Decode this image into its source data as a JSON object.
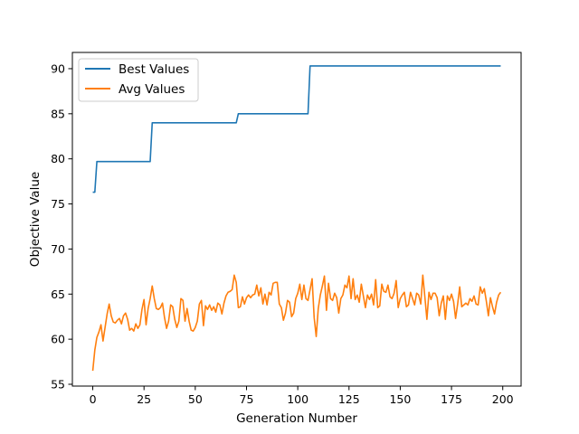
{
  "chart_data": {
    "type": "line",
    "title": "",
    "xlabel": "Generation Number",
    "ylabel": "Objective Value",
    "xlim": [
      -9.95,
      208.95
    ],
    "ylim": [
      54.8,
      91.8
    ],
    "xticks": [
      0,
      25,
      50,
      75,
      100,
      125,
      150,
      175,
      200
    ],
    "yticks": [
      55,
      60,
      65,
      70,
      75,
      80,
      85,
      90
    ],
    "grid": false,
    "legend_position": "top-left",
    "series": [
      {
        "name": "Best Values",
        "color": "#1f77b4",
        "points": [
          [
            0,
            76.3
          ],
          [
            1,
            76.3
          ],
          [
            2,
            79.7
          ],
          [
            28,
            79.7
          ],
          [
            29,
            84.0
          ],
          [
            70,
            84.0
          ],
          [
            71,
            85.0
          ],
          [
            105,
            85.0
          ],
          [
            106,
            90.3
          ],
          [
            199,
            90.3
          ]
        ]
      },
      {
        "name": "Avg Values",
        "color": "#ff7f0e",
        "points": [
          [
            0,
            56.5
          ],
          [
            1,
            58.8
          ],
          [
            2,
            60.2
          ],
          [
            3,
            60.8
          ],
          [
            4,
            61.6
          ],
          [
            5,
            59.8
          ],
          [
            6,
            61.3
          ],
          [
            7,
            62.8
          ],
          [
            8,
            63.9
          ],
          [
            9,
            62.6
          ],
          [
            10,
            61.9
          ],
          [
            11,
            61.8
          ],
          [
            12,
            62.1
          ],
          [
            13,
            62.3
          ],
          [
            14,
            61.7
          ],
          [
            15,
            62.6
          ],
          [
            16,
            62.9
          ],
          [
            17,
            62.2
          ],
          [
            18,
            61.0
          ],
          [
            19,
            61.2
          ],
          [
            20,
            60.9
          ],
          [
            21,
            61.7
          ],
          [
            22,
            61.2
          ],
          [
            23,
            61.6
          ],
          [
            24,
            63.3
          ],
          [
            25,
            64.4
          ],
          [
            26,
            61.6
          ],
          [
            27,
            63.4
          ],
          [
            28,
            64.5
          ],
          [
            29,
            65.9
          ],
          [
            30,
            64.5
          ],
          [
            31,
            63.4
          ],
          [
            32,
            63.3
          ],
          [
            33,
            63.5
          ],
          [
            34,
            64.0
          ],
          [
            35,
            62.4
          ],
          [
            36,
            61.2
          ],
          [
            37,
            62.0
          ],
          [
            38,
            63.8
          ],
          [
            39,
            63.6
          ],
          [
            40,
            62.2
          ],
          [
            41,
            61.3
          ],
          [
            42,
            62.0
          ],
          [
            43,
            64.5
          ],
          [
            44,
            64.3
          ],
          [
            45,
            62.0
          ],
          [
            46,
            63.4
          ],
          [
            47,
            62.0
          ],
          [
            48,
            61.0
          ],
          [
            49,
            60.9
          ],
          [
            50,
            61.3
          ],
          [
            51,
            62.0
          ],
          [
            52,
            63.9
          ],
          [
            53,
            64.3
          ],
          [
            54,
            61.5
          ],
          [
            55,
            63.7
          ],
          [
            56,
            63.3
          ],
          [
            57,
            63.8
          ],
          [
            58,
            63.2
          ],
          [
            59,
            63.6
          ],
          [
            60,
            63.0
          ],
          [
            61,
            64.0
          ],
          [
            62,
            63.8
          ],
          [
            63,
            62.8
          ],
          [
            64,
            64.0
          ],
          [
            65,
            64.8
          ],
          [
            66,
            65.2
          ],
          [
            67,
            65.3
          ],
          [
            68,
            65.5
          ],
          [
            69,
            67.1
          ],
          [
            70,
            66.3
          ],
          [
            71,
            63.5
          ],
          [
            72,
            63.6
          ],
          [
            73,
            64.7
          ],
          [
            74,
            63.9
          ],
          [
            75,
            64.6
          ],
          [
            76,
            64.9
          ],
          [
            77,
            64.6
          ],
          [
            78,
            64.9
          ],
          [
            79,
            65.0
          ],
          [
            80,
            66.0
          ],
          [
            81,
            64.8
          ],
          [
            82,
            65.7
          ],
          [
            83,
            63.9
          ],
          [
            84,
            65.0
          ],
          [
            85,
            63.8
          ],
          [
            86,
            65.2
          ],
          [
            87,
            64.9
          ],
          [
            88,
            66.2
          ],
          [
            89,
            66.3
          ],
          [
            90,
            66.3
          ],
          [
            91,
            63.9
          ],
          [
            92,
            63.5
          ],
          [
            93,
            62.1
          ],
          [
            94,
            62.9
          ],
          [
            95,
            64.3
          ],
          [
            96,
            64.1
          ],
          [
            97,
            62.5
          ],
          [
            98,
            62.9
          ],
          [
            99,
            64.5
          ],
          [
            100,
            65.1
          ],
          [
            101,
            66.1
          ],
          [
            102,
            64.4
          ],
          [
            103,
            66.0
          ],
          [
            104,
            64.5
          ],
          [
            105,
            64.3
          ],
          [
            106,
            65.5
          ],
          [
            107,
            66.7
          ],
          [
            108,
            62.4
          ],
          [
            109,
            60.3
          ],
          [
            110,
            63.4
          ],
          [
            111,
            64.9
          ],
          [
            112,
            65.9
          ],
          [
            113,
            67.0
          ],
          [
            114,
            63.2
          ],
          [
            115,
            66.2
          ],
          [
            116,
            64.5
          ],
          [
            117,
            64.3
          ],
          [
            118,
            65.1
          ],
          [
            119,
            64.6
          ],
          [
            120,
            62.9
          ],
          [
            121,
            64.5
          ],
          [
            122,
            64.9
          ],
          [
            123,
            66.0
          ],
          [
            124,
            65.7
          ],
          [
            125,
            67.0
          ],
          [
            126,
            64.5
          ],
          [
            127,
            66.7
          ],
          [
            128,
            64.4
          ],
          [
            129,
            64.9
          ],
          [
            130,
            64.1
          ],
          [
            131,
            66.1
          ],
          [
            132,
            64.8
          ],
          [
            133,
            63.5
          ],
          [
            134,
            64.9
          ],
          [
            135,
            64.4
          ],
          [
            136,
            65.0
          ],
          [
            137,
            63.8
          ],
          [
            138,
            66.6
          ],
          [
            139,
            63.5
          ],
          [
            140,
            63.7
          ],
          [
            141,
            66.1
          ],
          [
            142,
            65.3
          ],
          [
            143,
            65.2
          ],
          [
            144,
            66.0
          ],
          [
            145,
            64.7
          ],
          [
            146,
            64.5
          ],
          [
            147,
            65.1
          ],
          [
            148,
            66.5
          ],
          [
            149,
            63.5
          ],
          [
            150,
            64.5
          ],
          [
            151,
            64.9
          ],
          [
            152,
            65.2
          ],
          [
            153,
            63.6
          ],
          [
            154,
            63.8
          ],
          [
            155,
            65.2
          ],
          [
            156,
            64.5
          ],
          [
            157,
            63.8
          ],
          [
            158,
            65.1
          ],
          [
            159,
            64.9
          ],
          [
            160,
            63.9
          ],
          [
            161,
            67.1
          ],
          [
            162,
            64.7
          ],
          [
            163,
            62.2
          ],
          [
            164,
            65.2
          ],
          [
            165,
            64.4
          ],
          [
            166,
            65.1
          ],
          [
            167,
            65.1
          ],
          [
            168,
            64.6
          ],
          [
            169,
            62.6
          ],
          [
            170,
            64.0
          ],
          [
            171,
            64.8
          ],
          [
            172,
            62.2
          ],
          [
            173,
            64.8
          ],
          [
            174,
            64.3
          ],
          [
            175,
            65.0
          ],
          [
            176,
            64.2
          ],
          [
            177,
            62.3
          ],
          [
            178,
            63.9
          ],
          [
            179,
            65.8
          ],
          [
            180,
            63.6
          ],
          [
            181,
            63.8
          ],
          [
            182,
            64.0
          ],
          [
            183,
            63.8
          ],
          [
            184,
            64.5
          ],
          [
            185,
            64.2
          ],
          [
            186,
            64.8
          ],
          [
            187,
            63.9
          ],
          [
            188,
            63.8
          ],
          [
            189,
            65.8
          ],
          [
            190,
            65.1
          ],
          [
            191,
            65.6
          ],
          [
            192,
            64.2
          ],
          [
            193,
            62.6
          ],
          [
            194,
            64.6
          ],
          [
            195,
            63.6
          ],
          [
            196,
            62.8
          ],
          [
            197,
            64.1
          ],
          [
            198,
            64.9
          ],
          [
            199,
            65.2
          ]
        ]
      }
    ]
  }
}
